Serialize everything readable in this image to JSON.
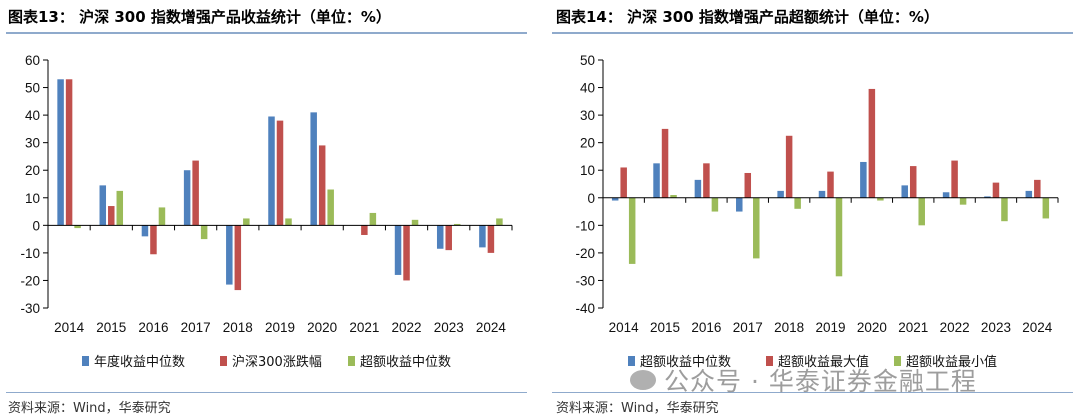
{
  "watermark": "公众号 · 华泰证券金融工程",
  "chart_data": [
    {
      "type": "bar",
      "title": "图表13：  沪深 300 指数增强产品收益统计（单位：%）",
      "source": "资料来源：Wind，华泰研究",
      "categories": [
        "2014",
        "2015",
        "2016",
        "2017",
        "2018",
        "2019",
        "2020",
        "2021",
        "2022",
        "2023",
        "2024"
      ],
      "ylim": [
        -30,
        60
      ],
      "yticks": [
        -30,
        -20,
        -10,
        0,
        10,
        20,
        30,
        40,
        50,
        60
      ],
      "series": [
        {
          "name": "年度收益中位数",
          "color": "#4f81bd",
          "values": [
            53,
            14.5,
            -4,
            20,
            -21.5,
            39.5,
            41,
            0,
            -18,
            -8.5,
            -8
          ]
        },
        {
          "name": "沪深300涨跌幅",
          "color": "#c0504d",
          "values": [
            53,
            7,
            -10.5,
            23.5,
            -23.5,
            38,
            29,
            -3.5,
            -20,
            -9,
            -10
          ]
        },
        {
          "name": "超额收益中位数",
          "color": "#9bbb59",
          "values": [
            -1,
            12.5,
            6.5,
            -5,
            2.5,
            2.5,
            13,
            4.5,
            2,
            0.5,
            2.5
          ]
        }
      ]
    },
    {
      "type": "bar",
      "title": "图表14：  沪深 300 指数增强产品超额统计（单位：%）",
      "source": "资料来源：Wind，华泰研究",
      "categories": [
        "2014",
        "2015",
        "2016",
        "2017",
        "2018",
        "2019",
        "2020",
        "2021",
        "2022",
        "2023",
        "2024"
      ],
      "ylim": [
        -40,
        50
      ],
      "yticks": [
        -40,
        -30,
        -20,
        -10,
        0,
        10,
        20,
        30,
        40,
        50
      ],
      "series": [
        {
          "name": "超额收益中位数",
          "color": "#4f81bd",
          "values": [
            -1,
            12.5,
            6.5,
            -5,
            2.5,
            2.5,
            13,
            4.5,
            2,
            0.5,
            2.5
          ]
        },
        {
          "name": "超额收益最大值",
          "color": "#c0504d",
          "values": [
            11,
            25,
            12.5,
            9,
            22.5,
            9.5,
            39.5,
            11.5,
            13.5,
            5.5,
            6.5
          ]
        },
        {
          "name": "超额收益最小值",
          "color": "#9bbb59",
          "values": [
            -24,
            1,
            -5,
            -22,
            -4,
            -28.5,
            -1,
            -10,
            -2.5,
            -8.5,
            -7.5
          ]
        }
      ]
    }
  ]
}
